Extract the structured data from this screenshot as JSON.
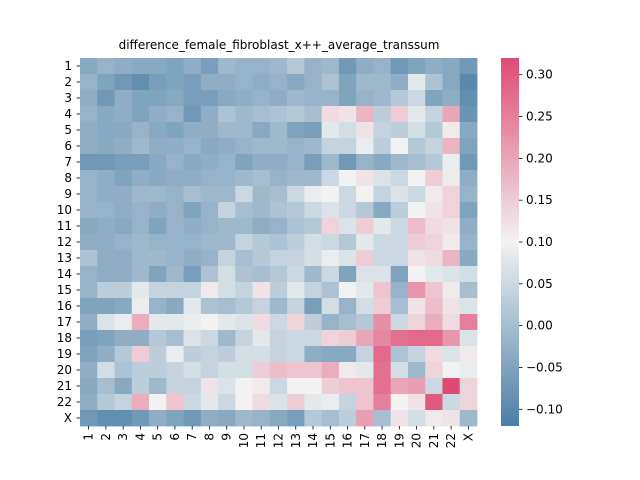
{
  "chart_data": {
    "type": "heatmap",
    "title": "difference_female_fibroblast_x++_average_transsum",
    "row_labels": [
      "1",
      "2",
      "3",
      "4",
      "5",
      "6",
      "7",
      "8",
      "9",
      "10",
      "11",
      "12",
      "13",
      "14",
      "15",
      "16",
      "17",
      "18",
      "19",
      "20",
      "21",
      "22",
      "X"
    ],
    "col_labels": [
      "1",
      "2",
      "3",
      "4",
      "5",
      "6",
      "7",
      "8",
      "9",
      "10",
      "11",
      "12",
      "13",
      "14",
      "15",
      "16",
      "17",
      "18",
      "19",
      "20",
      "21",
      "22",
      "X"
    ],
    "colorbar": {
      "vmin": -0.12,
      "vmax": 0.32,
      "ticks": [
        -0.1,
        -0.05,
        0.0,
        0.05,
        0.1,
        0.15,
        0.2,
        0.25,
        0.3
      ],
      "tick_labels": [
        "−0.10",
        "−0.05",
        "0.00",
        "0.05",
        "0.10",
        "0.15",
        "0.20",
        "0.25",
        "0.30"
      ],
      "colormap": "diverging blue-white-pink",
      "low_color": "#4a7fa6",
      "mid_color": "#f2f2f2",
      "high_color": "#de4a74",
      "center": 0.1
    },
    "values": [
      [
        -0.04,
        -0.02,
        -0.03,
        -0.04,
        -0.04,
        -0.05,
        -0.03,
        -0.06,
        -0.01,
        -0.02,
        -0.02,
        -0.01,
        0.02,
        -0.02,
        -0.01,
        -0.07,
        -0.03,
        -0.02,
        -0.07,
        -0.05,
        -0.03,
        -0.04,
        -0.07
      ],
      [
        -0.02,
        -0.05,
        -0.07,
        -0.09,
        -0.06,
        -0.05,
        -0.06,
        -0.03,
        -0.03,
        -0.02,
        -0.03,
        -0.02,
        -0.04,
        -0.02,
        0.01,
        -0.05,
        -0.01,
        -0.01,
        -0.03,
        0.08,
        0.01,
        -0.04,
        -0.1
      ],
      [
        -0.03,
        -0.07,
        -0.03,
        -0.05,
        -0.05,
        -0.04,
        -0.06,
        -0.06,
        -0.04,
        -0.03,
        -0.02,
        -0.03,
        -0.01,
        -0.02,
        -0.02,
        -0.05,
        -0.02,
        -0.01,
        0.02,
        0.05,
        -0.05,
        -0.03,
        -0.09
      ],
      [
        -0.02,
        -0.04,
        -0.03,
        -0.05,
        -0.03,
        -0.02,
        -0.07,
        -0.03,
        0.01,
        -0.01,
        0.0,
        0.01,
        0.02,
        0.0,
        0.13,
        0.12,
        0.18,
        0.03,
        0.15,
        0.08,
        0.04,
        0.2,
        -0.08
      ],
      [
        -0.03,
        -0.04,
        -0.04,
        -0.02,
        -0.04,
        -0.05,
        -0.03,
        -0.03,
        -0.01,
        -0.01,
        -0.04,
        -0.01,
        -0.05,
        -0.06,
        0.08,
        0.06,
        0.12,
        0.04,
        0.03,
        0.06,
        0.02,
        0.11,
        -0.04
      ],
      [
        -0.03,
        -0.04,
        -0.03,
        -0.01,
        -0.03,
        -0.03,
        -0.02,
        -0.04,
        -0.03,
        -0.02,
        -0.01,
        -0.01,
        -0.02,
        -0.01,
        0.04,
        0.04,
        0.09,
        0.03,
        0.1,
        0.02,
        0.04,
        0.18,
        -0.05
      ],
      [
        -0.07,
        -0.07,
        -0.06,
        -0.06,
        -0.04,
        -0.02,
        -0.04,
        -0.03,
        -0.02,
        -0.05,
        -0.03,
        -0.03,
        -0.02,
        -0.06,
        -0.01,
        -0.07,
        -0.02,
        -0.04,
        -0.01,
        0.0,
        0.02,
        0.09,
        -0.07
      ],
      [
        -0.02,
        -0.03,
        -0.05,
        -0.03,
        -0.04,
        -0.03,
        -0.03,
        -0.02,
        -0.02,
        -0.01,
        0.0,
        -0.02,
        -0.01,
        -0.01,
        0.05,
        0.1,
        0.12,
        0.07,
        0.05,
        0.1,
        0.15,
        0.11,
        -0.03
      ],
      [
        -0.02,
        -0.03,
        -0.03,
        -0.01,
        -0.01,
        -0.02,
        0.0,
        -0.01,
        -0.01,
        0.05,
        -0.01,
        0.0,
        0.05,
        0.09,
        0.1,
        0.05,
        0.1,
        0.04,
        0.07,
        0.05,
        0.11,
        0.14,
        -0.02
      ],
      [
        -0.02,
        -0.02,
        -0.03,
        -0.02,
        -0.03,
        -0.02,
        -0.05,
        -0.02,
        0.04,
        0.0,
        -0.01,
        0.01,
        0.02,
        0.05,
        0.07,
        0.05,
        0.02,
        -0.04,
        0.03,
        0.1,
        0.12,
        0.14,
        -0.05
      ],
      [
        -0.04,
        -0.03,
        -0.04,
        -0.02,
        -0.05,
        -0.02,
        -0.03,
        -0.02,
        -0.01,
        -0.01,
        -0.03,
        -0.02,
        0.01,
        0.02,
        0.14,
        0.07,
        0.15,
        0.08,
        0.05,
        0.17,
        0.13,
        0.12,
        -0.03
      ],
      [
        -0.03,
        -0.03,
        -0.02,
        -0.01,
        -0.02,
        -0.02,
        -0.02,
        -0.01,
        -0.01,
        0.04,
        0.02,
        0.01,
        0.03,
        0.06,
        0.05,
        0.02,
        0.08,
        0.05,
        0.05,
        0.15,
        0.14,
        0.11,
        -0.02
      ],
      [
        0.01,
        -0.03,
        -0.03,
        -0.01,
        -0.01,
        -0.02,
        -0.03,
        -0.02,
        0.04,
        0.0,
        0.02,
        0.04,
        0.04,
        0.06,
        0.09,
        0.07,
        0.15,
        0.05,
        0.05,
        0.12,
        0.13,
        0.18,
        -0.04
      ],
      [
        -0.02,
        -0.03,
        -0.03,
        -0.01,
        -0.05,
        -0.01,
        -0.06,
        0.01,
        0.06,
        0.01,
        0.0,
        0.02,
        0.05,
        -0.01,
        0.05,
        -0.05,
        0.07,
        0.07,
        -0.05,
        0.1,
        0.08,
        0.07,
        0.06
      ],
      [
        -0.02,
        0.03,
        0.03,
        0.08,
        0.04,
        0.04,
        0.04,
        0.11,
        0.06,
        0.04,
        0.12,
        0.03,
        0.08,
        0.04,
        0.01,
        0.1,
        0.08,
        0.16,
        -0.02,
        0.22,
        0.16,
        0.11,
        0.0
      ],
      [
        -0.05,
        -0.05,
        -0.04,
        0.09,
        -0.02,
        -0.04,
        0.08,
        0.01,
        0.0,
        0.02,
        0.04,
        -0.01,
        0.04,
        -0.06,
        0.06,
        -0.02,
        0.06,
        0.15,
        0.0,
        0.12,
        0.17,
        0.12,
        0.07
      ],
      [
        -0.03,
        0.07,
        0.09,
        0.19,
        0.08,
        0.08,
        0.09,
        0.1,
        0.08,
        0.07,
        0.13,
        0.05,
        0.14,
        0.03,
        -0.02,
        0.0,
        0.02,
        0.23,
        0.05,
        0.14,
        0.19,
        0.13,
        0.25
      ],
      [
        -0.06,
        -0.05,
        -0.03,
        -0.03,
        0.02,
        0.0,
        0.07,
        0.05,
        -0.01,
        0.04,
        0.08,
        0.04,
        0.05,
        0.05,
        0.14,
        0.15,
        0.2,
        0.24,
        0.27,
        0.28,
        0.28,
        0.22,
        0.07
      ],
      [
        -0.05,
        -0.03,
        0.02,
        0.15,
        0.03,
        0.09,
        0.03,
        0.04,
        0.03,
        0.06,
        0.06,
        0.04,
        0.05,
        -0.03,
        -0.04,
        -0.04,
        0.04,
        0.28,
        0.01,
        0.04,
        0.13,
        0.07,
        0.11
      ],
      [
        -0.03,
        0.06,
        0.01,
        0.03,
        0.03,
        0.04,
        0.06,
        0.04,
        0.06,
        0.06,
        0.15,
        0.17,
        0.16,
        0.16,
        0.19,
        0.11,
        0.08,
        0.27,
        0.06,
        -0.01,
        0.14,
        0.1,
        0.09
      ],
      [
        -0.04,
        0.0,
        -0.04,
        0.03,
        -0.01,
        0.04,
        0.04,
        0.12,
        0.07,
        0.1,
        0.11,
        0.05,
        0.1,
        0.1,
        0.15,
        0.16,
        0.16,
        0.27,
        0.2,
        0.21,
        0.05,
        0.32,
        0.14
      ],
      [
        -0.03,
        0.02,
        0.04,
        0.19,
        0.1,
        0.16,
        0.05,
        0.08,
        0.05,
        0.1,
        0.13,
        0.07,
        0.15,
        0.08,
        0.09,
        0.04,
        0.16,
        0.25,
        0.1,
        0.12,
        0.3,
        0.05,
        0.14
      ],
      [
        -0.07,
        -0.09,
        -0.09,
        -0.07,
        -0.03,
        -0.05,
        -0.07,
        -0.03,
        -0.04,
        -0.01,
        -0.02,
        -0.04,
        -0.06,
        0.02,
        0.0,
        0.03,
        0.21,
        0.0,
        0.12,
        0.06,
        0.11,
        0.12,
        -0.01
      ]
    ]
  }
}
